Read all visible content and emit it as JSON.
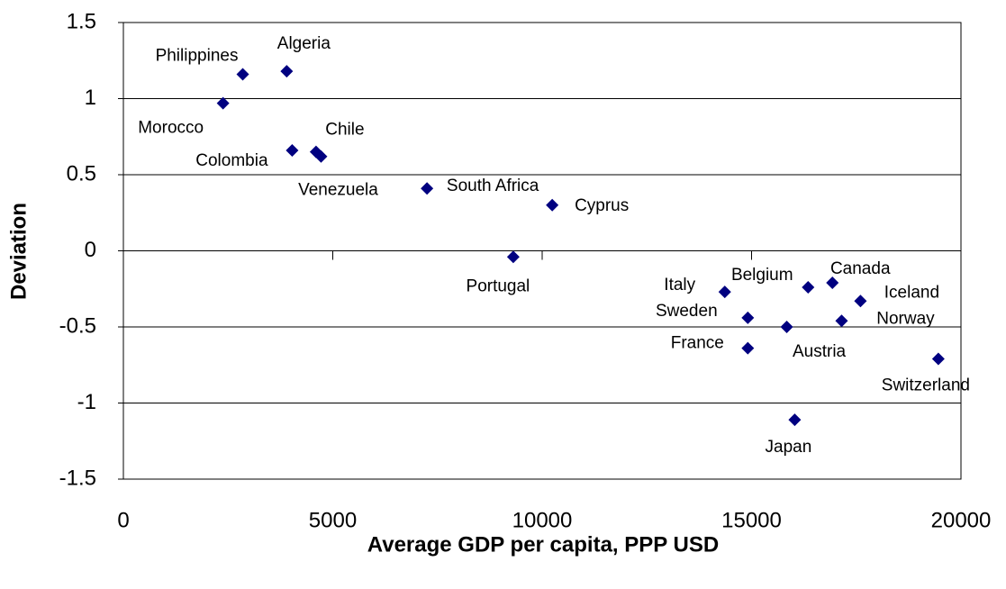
{
  "chart_data": {
    "type": "scatter",
    "x_label": "Average GDP per capita, PPP USD",
    "y_label": "Deviation",
    "color": "#000080",
    "grid": true,
    "xlim": [
      0,
      20000
    ],
    "xticks": [
      0,
      5000,
      10000,
      15000,
      20000
    ],
    "ylim": [
      -1.5,
      1.5
    ],
    "yticks": [
      -1.5,
      -1,
      -0.5,
      0,
      0.5,
      1,
      1.5
    ],
    "point_labels": [
      "Morocco",
      "Philippines",
      "Algeria",
      "Colombia",
      "Chile",
      "Venezuela",
      "South Africa",
      "Cyprus",
      "Portugal",
      "Italy",
      "Sweden",
      "France",
      "Belgium",
      "Canada",
      "Iceland",
      "Norway",
      "Austria",
      "Japan",
      "Switzerland"
    ],
    "x": [
      2380,
      2850,
      3900,
      4030,
      4600,
      4720,
      7250,
      10240,
      9310,
      14360,
      14910,
      14910,
      16350,
      16930,
      17600,
      17150,
      15840,
      16030,
      19460
    ],
    "values": [
      0.97,
      1.16,
      1.18,
      0.66,
      0.65,
      0.62,
      0.41,
      0.3,
      -0.04,
      -0.27,
      -0.44,
      -0.64,
      -0.24,
      -0.21,
      -0.33,
      -0.46,
      -0.5,
      -1.11,
      -0.71
    ]
  }
}
